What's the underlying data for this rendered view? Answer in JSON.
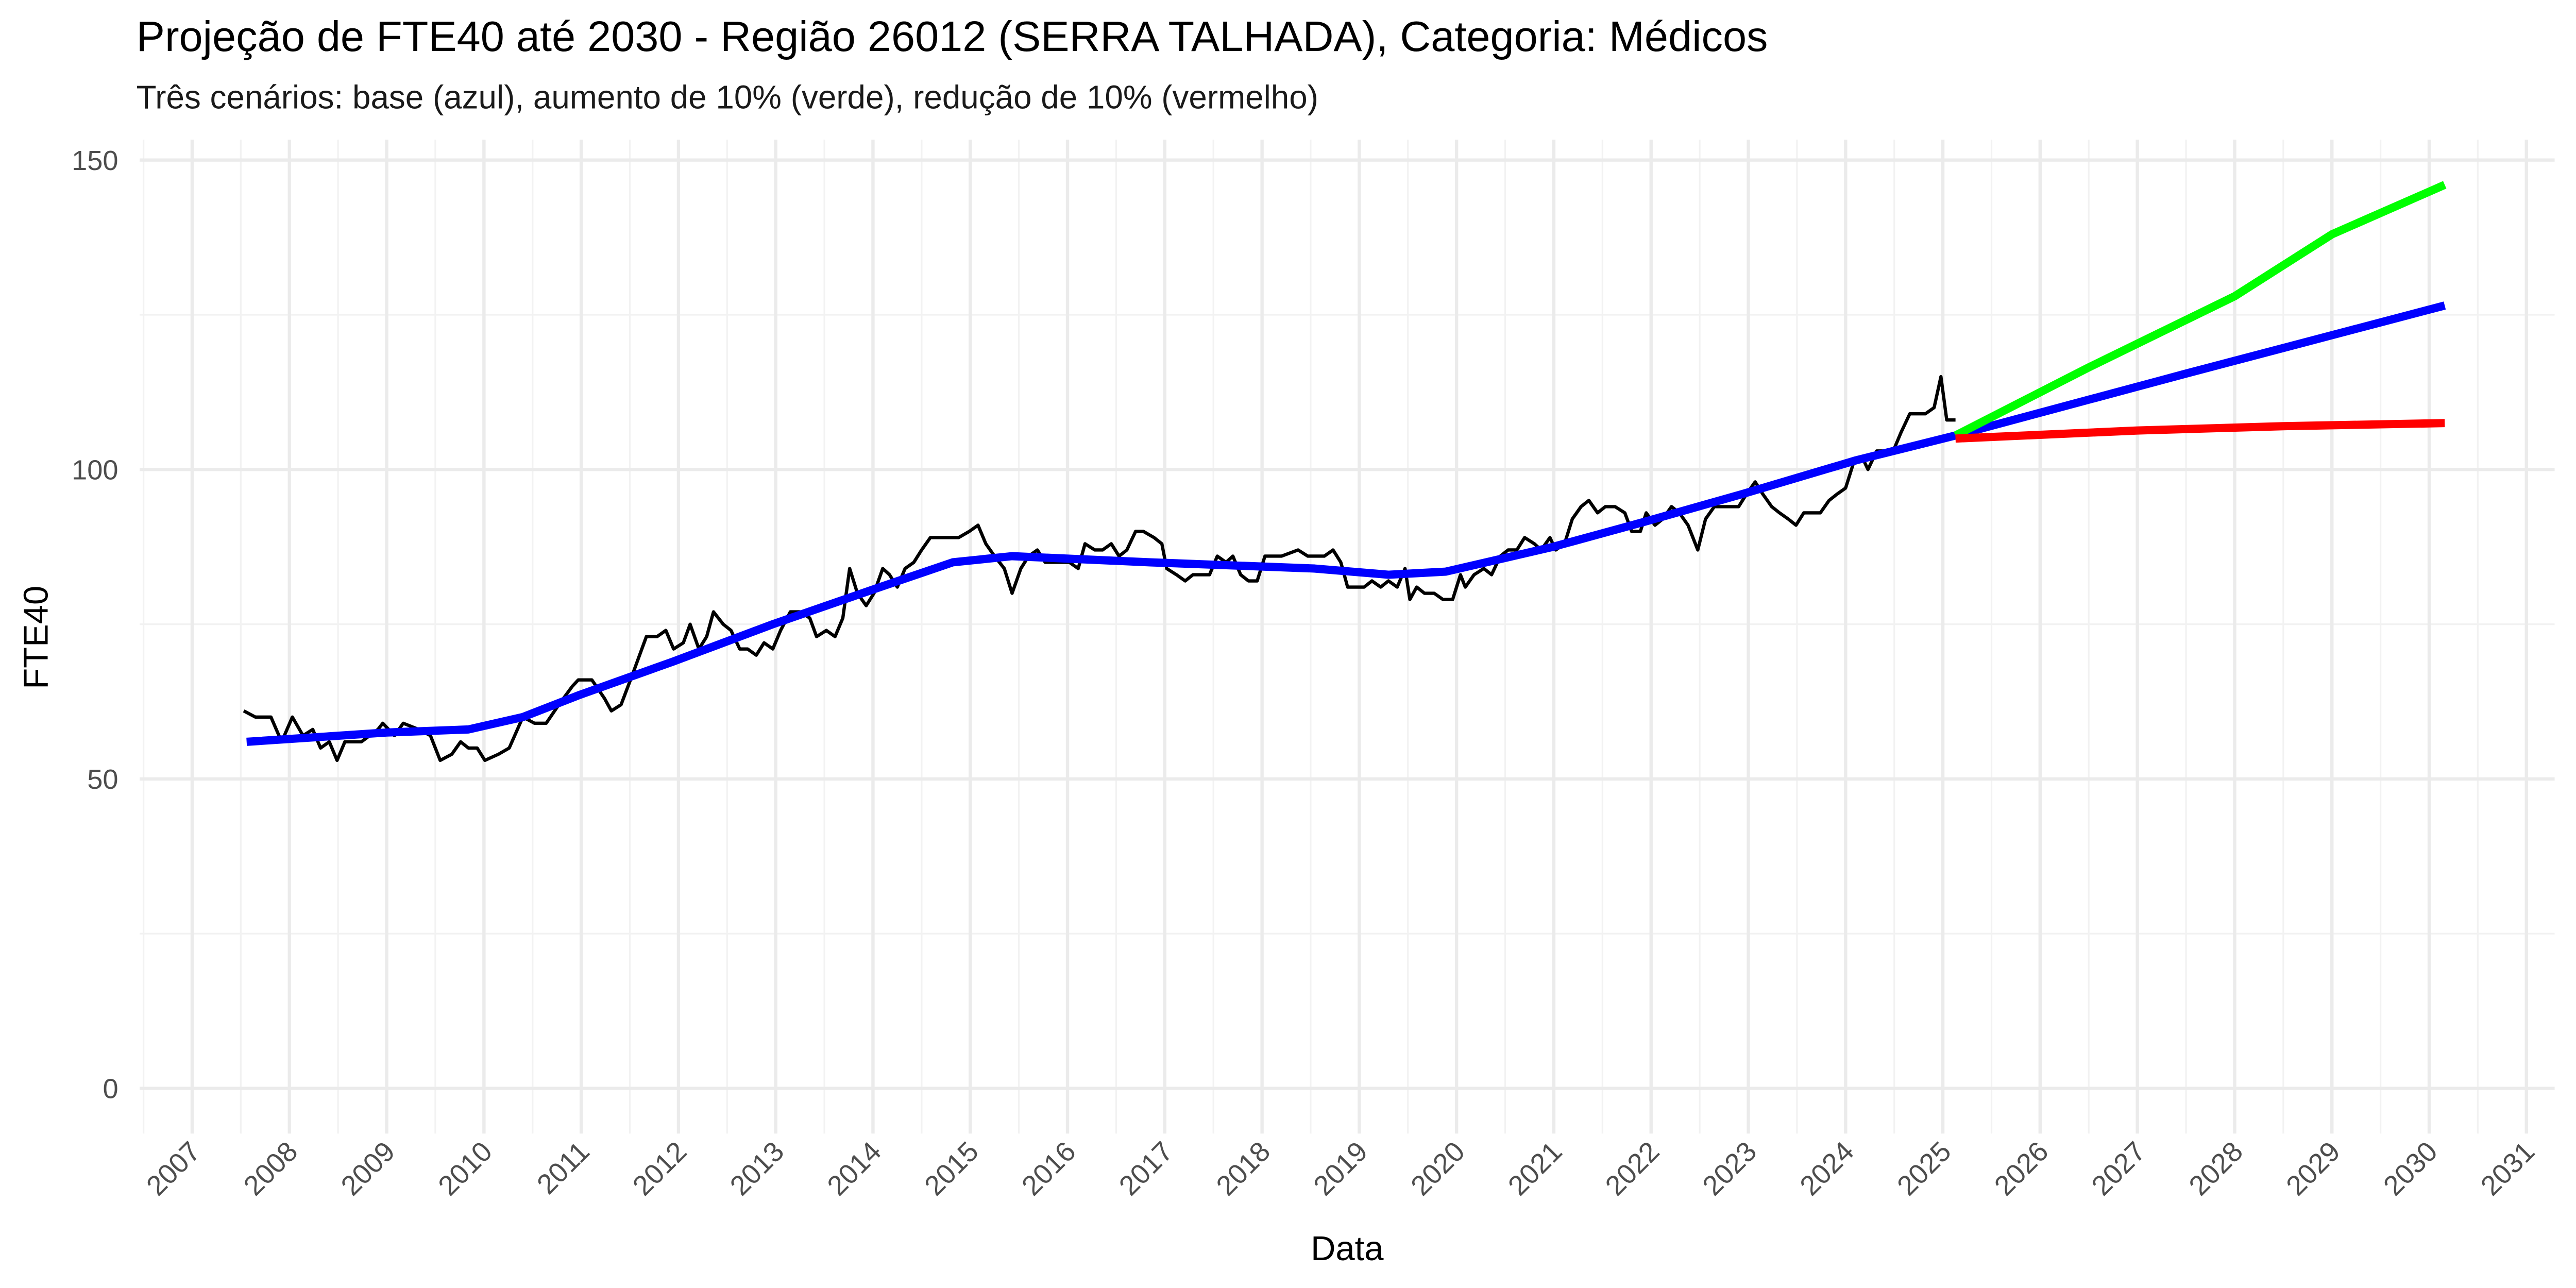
{
  "chart_data": {
    "type": "line",
    "title": "Projeção de FTE40 até 2030 - Região 26012 (SERRA TALHADA), Categoria: Médicos",
    "subtitle": "Três cenários: base (azul), aumento de 10% (verde), redução de 10% (vermelho)",
    "x_label": "Data",
    "y_label": "FTE40",
    "xlim": [
      2006.46,
      2031.29
    ],
    "xticks": [
      2007,
      2008,
      2009,
      2010,
      2011,
      2012,
      2013,
      2014,
      2015,
      2016,
      2017,
      2018,
      2019,
      2020,
      2021,
      2022,
      2023,
      2024,
      2025,
      2026,
      2027,
      2028,
      2029,
      2030,
      2031
    ],
    "ylim": [
      -7.3,
      153.3
    ],
    "yticks": [
      0,
      50,
      100,
      150
    ],
    "grid": true,
    "series": [
      {
        "color": "#000000",
        "x": [
          2007.53,
          2007.65,
          2007.81,
          2007.92,
          2008.03,
          2008.14,
          2008.24,
          2008.32,
          2008.41,
          2008.49,
          2008.57,
          2008.74,
          2008.91,
          2008.96,
          2009.08,
          2009.17,
          2009.33,
          2009.45,
          2009.55,
          2009.67,
          2009.76,
          2009.84,
          2009.93,
          2010.01,
          2010.15,
          2010.26,
          2010.4,
          2010.52,
          2010.64,
          2010.77,
          2010.91,
          2010.97,
          2011.11,
          2011.24,
          2011.31,
          2011.41,
          2011.53,
          2011.67,
          2011.78,
          2011.87,
          2011.95,
          2012.05,
          2012.12,
          2012.21,
          2012.29,
          2012.36,
          2012.46,
          2012.54,
          2012.63,
          2012.71,
          2012.8,
          2012.88,
          2012.97,
          2013.05,
          2013.15,
          2013.25,
          2013.35,
          2013.42,
          2013.52,
          2013.61,
          2013.69,
          2013.76,
          2013.84,
          2013.93,
          2014.01,
          2014.1,
          2014.17,
          2014.25,
          2014.33,
          2014.42,
          2014.5,
          2014.59,
          2014.74,
          2014.88,
          2014.99,
          2015.08,
          2015.16,
          2015.25,
          2015.35,
          2015.43,
          2015.52,
          2015.6,
          2015.69,
          2015.77,
          2015.94,
          2016.02,
          2016.11,
          2016.18,
          2016.28,
          2016.36,
          2016.45,
          2016.53,
          2016.61,
          2016.7,
          2016.78,
          2016.89,
          2016.97,
          2017.02,
          2017.12,
          2017.21,
          2017.29,
          2017.46,
          2017.54,
          2017.63,
          2017.7,
          2017.78,
          2017.86,
          2017.95,
          2018.03,
          2018.2,
          2018.37,
          2018.47,
          2018.64,
          2018.73,
          2018.81,
          2018.88,
          2019.05,
          2019.13,
          2019.22,
          2019.3,
          2019.39,
          2019.47,
          2019.52,
          2019.59,
          2019.67,
          2019.77,
          2019.86,
          2019.96,
          2020.04,
          2020.09,
          2020.18,
          2020.28,
          2020.36,
          2020.45,
          2020.53,
          2020.62,
          2020.7,
          2020.8,
          2020.87,
          2020.96,
          2021.02,
          2021.11,
          2021.19,
          2021.28,
          2021.36,
          2021.45,
          2021.53,
          2021.63,
          2021.73,
          2021.8,
          2021.89,
          2021.95,
          2022.04,
          2022.12,
          2022.21,
          2022.29,
          2022.38,
          2022.48,
          2022.56,
          2022.65,
          2022.73,
          2022.81,
          2022.9,
          2022.98,
          2023.07,
          2023.15,
          2023.24,
          2023.32,
          2023.41,
          2023.49,
          2023.57,
          2023.66,
          2023.74,
          2023.83,
          2023.91,
          2024.0,
          2024.08,
          2024.17,
          2024.23,
          2024.32,
          2024.4,
          2024.49,
          2024.57,
          2024.66,
          2024.74,
          2024.82,
          2024.91,
          2024.98,
          2025.04,
          2025.13
        ],
        "values": [
          61,
          60,
          60,
          56,
          60,
          57,
          58,
          55,
          56,
          53,
          56,
          56,
          58,
          59,
          57,
          59,
          58,
          57,
          53,
          54,
          56,
          55,
          55,
          53,
          54,
          55,
          60,
          59,
          59,
          62,
          65,
          66,
          66,
          63,
          61,
          62,
          67,
          73,
          73,
          74,
          71,
          72,
          75,
          71,
          73,
          77,
          75,
          74,
          71,
          71,
          70,
          72,
          71,
          74,
          77,
          77,
          76,
          73,
          74,
          73,
          76,
          84,
          80,
          78,
          80,
          84,
          83,
          81,
          84,
          85,
          87,
          89,
          89,
          89,
          90,
          91,
          88,
          86,
          84,
          80,
          84,
          86,
          87,
          85,
          85,
          85,
          84,
          88,
          87,
          87,
          88,
          86,
          87,
          90,
          90,
          89,
          88,
          84,
          83,
          82,
          83,
          83,
          86,
          85,
          86,
          83,
          82,
          82,
          86,
          86,
          87,
          86,
          86,
          87,
          85,
          81,
          81,
          82,
          81,
          82,
          81,
          84,
          79,
          81,
          80,
          80,
          79,
          79,
          83,
          81,
          83,
          84,
          83,
          86,
          87,
          87,
          89,
          88,
          87,
          89,
          87,
          88,
          92,
          94,
          95,
          93,
          94,
          94,
          93,
          90,
          90,
          93,
          91,
          92,
          94,
          93,
          91,
          87,
          92,
          94,
          94,
          94,
          94,
          96,
          98,
          96,
          94,
          93,
          92,
          91,
          93,
          93,
          93,
          95,
          96,
          97,
          101,
          102,
          100,
          103,
          103,
          103,
          106,
          109,
          109,
          109,
          110,
          115,
          108,
          108
        ]
      },
      {
        "color": "#0000ff",
        "x": [
          2007.56,
          2009.0,
          2009.84,
          2010.4,
          2010.97,
          2011.95,
          2012.97,
          2013.98,
          2014.82,
          2015.43,
          2016.85,
          2018.54,
          2019.3,
          2019.89,
          2020.99,
          2021.92,
          2022.93,
          2024.11,
          2025.13,
          2027.5,
          2030.16
        ],
        "values": [
          56,
          57.5,
          58,
          60,
          63.5,
          69,
          75,
          80.5,
          85,
          86,
          85,
          84,
          83,
          83.5,
          87.5,
          91.5,
          96,
          101.5,
          105.5,
          115.5,
          126.5
        ]
      },
      {
        "color": "#00ff00",
        "x": [
          2025.13,
          2026.5,
          2028.0,
          2029.0,
          2030.16
        ],
        "values": [
          105.5,
          116.5,
          128,
          138,
          146
        ]
      },
      {
        "color": "#ff0000",
        "x": [
          2025.13,
          2027.0,
          2028.5,
          2030.16
        ],
        "values": [
          105,
          106.3,
          107,
          107.5
        ]
      }
    ]
  }
}
